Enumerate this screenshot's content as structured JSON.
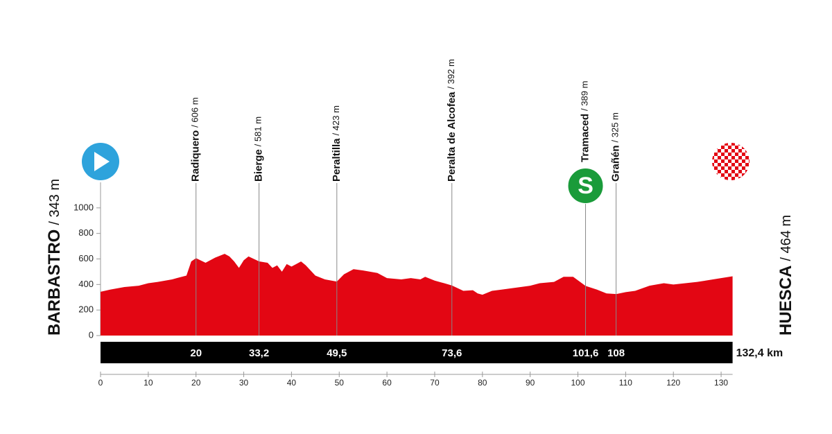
{
  "chart_data": {
    "type": "area",
    "start": {
      "name": "BARBASTRO",
      "elevation_label": "/ 343 m"
    },
    "finish": {
      "name": "HUESCA",
      "elevation_label": "/ 464 m"
    },
    "x": [
      0,
      2,
      5,
      8,
      10,
      12,
      15,
      18,
      19,
      20,
      22,
      24,
      26,
      27,
      28,
      29,
      30,
      31,
      33.2,
      35,
      36,
      37,
      38,
      39,
      40,
      41,
      42,
      43,
      45,
      47,
      49.5,
      51,
      53,
      55,
      58,
      60,
      63,
      65,
      67,
      68,
      70,
      72,
      73.6,
      76,
      78,
      79,
      80,
      82,
      84,
      86,
      90,
      92,
      95,
      97,
      99,
      101.6,
      104,
      106,
      108,
      110,
      112,
      115,
      118,
      120,
      125,
      130,
      132.4
    ],
    "values": [
      343,
      360,
      380,
      390,
      410,
      420,
      440,
      470,
      580,
      606,
      570,
      610,
      640,
      620,
      580,
      530,
      590,
      620,
      581,
      570,
      530,
      550,
      500,
      560,
      540,
      560,
      580,
      550,
      470,
      440,
      423,
      480,
      520,
      510,
      490,
      450,
      440,
      450,
      440,
      460,
      430,
      410,
      392,
      350,
      355,
      330,
      320,
      350,
      360,
      370,
      390,
      410,
      420,
      460,
      460,
      389,
      360,
      330,
      325,
      340,
      350,
      390,
      410,
      400,
      420,
      450,
      464
    ],
    "color": "#e30613",
    "xlim": [
      0,
      132.4
    ],
    "xticks": [
      0,
      10,
      20,
      30,
      40,
      50,
      60,
      70,
      80,
      90,
      100,
      110,
      120,
      130
    ],
    "ylim": [
      0,
      1200
    ],
    "yticks": [
      0,
      200,
      400,
      600,
      800,
      1000
    ],
    "waypoints": [
      {
        "name": "Radiquero",
        "elevation_label": "/ 606 m",
        "km": 20
      },
      {
        "name": "Bierge",
        "elevation_label": "/ 581 m",
        "km": {
          "value": 33.2,
          "label": "33,2"
        }
      },
      {
        "name": "Peraltilla",
        "elevation_label": "/ 423 m",
        "km": {
          "value": 49.5,
          "label": "49,5"
        }
      },
      {
        "name": "Peralta de Alcofea",
        "elevation_label": "/ 392 m",
        "km": {
          "value": 73.6,
          "label": "73,6"
        }
      },
      {
        "name": "Tramaced",
        "elevation_label": "/ 389 m",
        "km": {
          "value": 101.6,
          "label": "101,6"
        },
        "sprint": "S"
      },
      {
        "name": "Grañén",
        "elevation_label": "/ 325 m",
        "km": 108
      }
    ],
    "distance": {
      "value": 132.4,
      "label": "132,4 km"
    }
  }
}
